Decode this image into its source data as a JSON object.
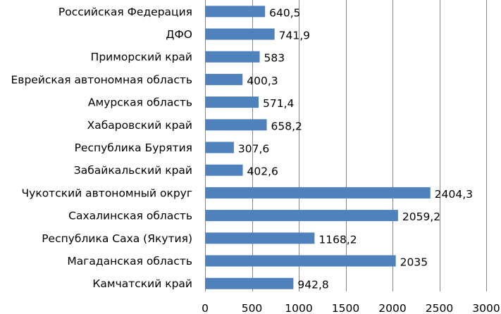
{
  "chart_data": {
    "type": "bar",
    "orientation": "horizontal",
    "categories": [
      "Российская Федерация",
      "ДФО",
      "Приморский край",
      "Еврейская автономная область",
      "Амурская область",
      "Хабаровский край",
      "Республика Бурятия",
      "Забайкальский край",
      "Чукотский автономный округ",
      "Сахалинская область",
      "Республика Саха (Якутия)",
      "Магаданская область",
      "Камчатский край"
    ],
    "values": [
      640.5,
      741.9,
      583,
      400.3,
      571.4,
      658.2,
      307.6,
      402.6,
      2404.3,
      2059.2,
      1168.2,
      2035,
      942.8
    ],
    "value_labels": [
      "640,5",
      "741,9",
      "583",
      "400,3",
      "571,4",
      "658,2",
      "307,6",
      "402,6",
      "2404,3",
      "2059,2",
      "1168,2",
      "2035",
      "942,8"
    ],
    "xlim": [
      0,
      3000
    ],
    "x_ticks": [
      0,
      500,
      1000,
      1500,
      2000,
      2500,
      3000
    ],
    "x_tick_labels": [
      "0",
      "500",
      "1000",
      "1500",
      "2000",
      "2500",
      "3000"
    ],
    "grid": "vertical",
    "bar_color": "#4f81bd",
    "grid_color": "#868686",
    "title": "",
    "xlabel": "",
    "ylabel": ""
  }
}
